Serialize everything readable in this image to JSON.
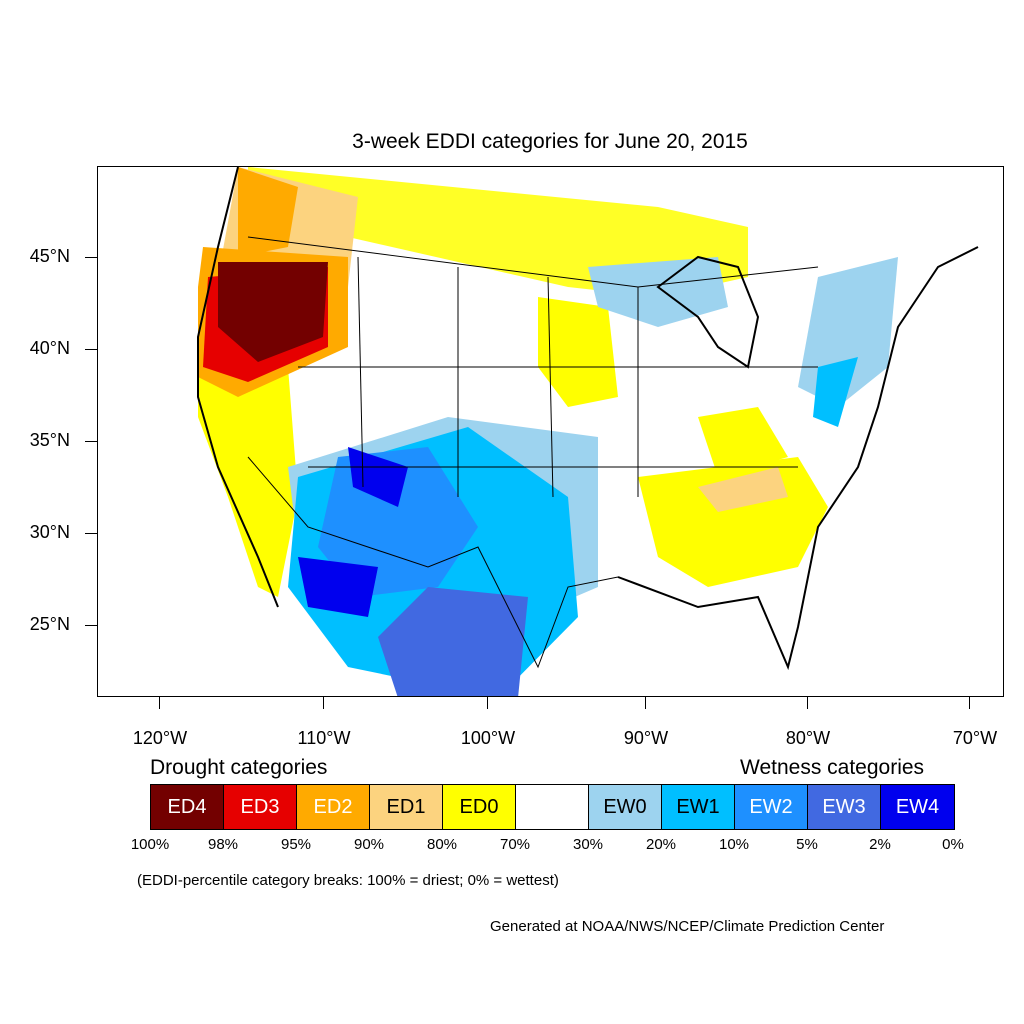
{
  "title": "3-week EDDI categories for June 20, 2015",
  "axes": {
    "y_labels": [
      "45°N",
      "40°N",
      "35°N",
      "30°N",
      "25°N"
    ],
    "x_labels": [
      "120°W",
      "110°W",
      "100°W",
      "90°W",
      "80°W",
      "70°W"
    ]
  },
  "legend": {
    "drought_heading": "Drought categories",
    "wetness_heading": "Wetness categories",
    "categories": [
      {
        "label": "ED4",
        "color": "#730000",
        "text_color": "#ffffff"
      },
      {
        "label": "ED3",
        "color": "#e60000",
        "text_color": "#ffffff"
      },
      {
        "label": "ED2",
        "color": "#ffaa00",
        "text_color": "#ffffff"
      },
      {
        "label": "ED1",
        "color": "#fcd37f",
        "text_color": "#000000"
      },
      {
        "label": "ED0",
        "color": "#ffff00",
        "text_color": "#000000"
      },
      {
        "label": "",
        "color": "#ffffff",
        "text_color": "#000000"
      },
      {
        "label": "EW0",
        "color": "#9dd3ef",
        "text_color": "#000000"
      },
      {
        "label": "EW1",
        "color": "#00bfff",
        "text_color": "#000000"
      },
      {
        "label": "EW2",
        "color": "#1e90ff",
        "text_color": "#ffffff"
      },
      {
        "label": "EW3",
        "color": "#4169e1",
        "text_color": "#ffffff"
      },
      {
        "label": "EW4",
        "color": "#0000ee",
        "text_color": "#ffffff"
      }
    ],
    "percentiles": [
      "100%",
      "98%",
      "95%",
      "90%",
      "80%",
      "70%",
      "30%",
      "20%",
      "10%",
      "5%",
      "2%",
      "0%"
    ]
  },
  "note": "(EDDI-percentile category breaks: 100% = driest; 0% = wettest)",
  "credit": "Generated at NOAA/NWS/NCEP/Climate Prediction Center"
}
